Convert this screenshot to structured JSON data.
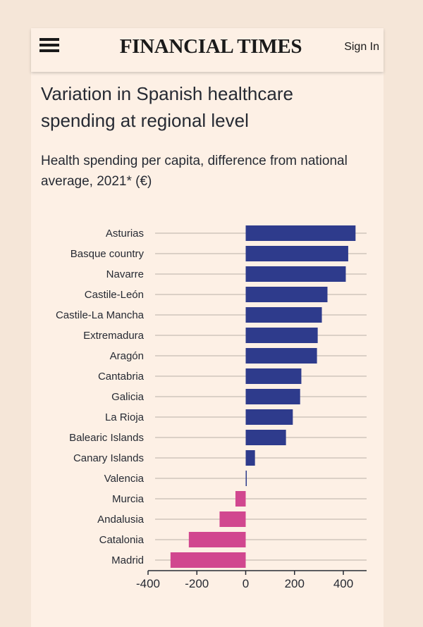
{
  "header": {
    "logo": "FINANCIAL TIMES",
    "sign_in": "Sign In"
  },
  "colors": {
    "background": "#fdf0e5",
    "positive": "#2e3b8c",
    "negative": "#d1478f",
    "grid": "#b9b0a8"
  },
  "chart_data": {
    "type": "bar",
    "orientation": "horizontal",
    "title": "Variation in Spanish healthcare spending at regional level",
    "subtitle": "Health spending per capita, difference from national average, 2021* (€)",
    "categories": [
      "Asturias",
      "Basque country",
      "Navarre",
      "Castile-León",
      "Castile-La Mancha",
      "Extremadura",
      "Aragón",
      "Cantabria",
      "Galicia",
      "La Rioja",
      "Balearic Islands",
      "Canary Islands",
      "Valencia",
      "Murcia",
      "Andalusia",
      "Catalonia",
      "Madrid"
    ],
    "values": [
      450,
      420,
      410,
      335,
      312,
      295,
      292,
      228,
      223,
      193,
      165,
      38,
      3,
      -42,
      -107,
      -233,
      -308
    ],
    "xlim": [
      -400,
      500
    ],
    "xticks": [
      -400,
      -200,
      0,
      200,
      400
    ],
    "xtick_labels": [
      "-400",
      "-200",
      "0",
      "200",
      "400"
    ],
    "xlabel": "",
    "ylabel": ""
  }
}
